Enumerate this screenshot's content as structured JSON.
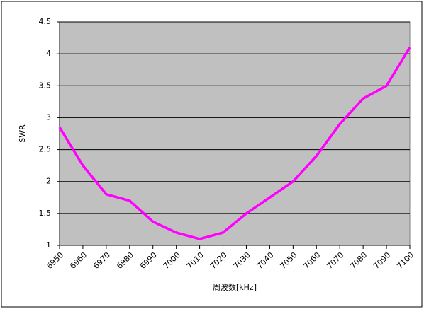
{
  "chart_data": {
    "type": "line",
    "x_label": "周波数[kHz]",
    "y_label": "SWR",
    "categories": [
      "6950",
      "6960",
      "6970",
      "6980",
      "6990",
      "7000",
      "7010",
      "7020",
      "7030",
      "7040",
      "7050",
      "7060",
      "7070",
      "7080",
      "7090",
      "7100"
    ],
    "series": [
      {
        "name": "SWR",
        "color": "#ff00ff",
        "values": [
          2.85,
          2.25,
          1.8,
          1.7,
          1.37,
          1.2,
          1.1,
          1.2,
          1.5,
          1.75,
          2,
          2.4,
          2.9,
          3.3,
          3.5,
          4.1
        ]
      }
    ],
    "ylim": [
      1,
      4.5
    ],
    "yticks": [
      1,
      1.5,
      2,
      2.5,
      3,
      3.5,
      4,
      4.5
    ],
    "grid": true,
    "plot_color": "#c0c0c0"
  }
}
